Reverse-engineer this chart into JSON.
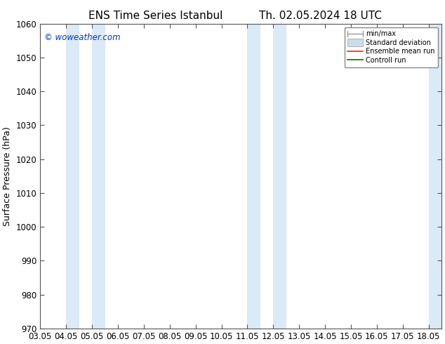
{
  "title_left": "ENS Time Series Istanbul",
  "title_right": "Th. 02.05.2024 18 UTC",
  "ylabel": "Surface Pressure (hPa)",
  "ylim": [
    970,
    1060
  ],
  "yticks": [
    970,
    980,
    990,
    1000,
    1010,
    1020,
    1030,
    1040,
    1050,
    1060
  ],
  "xlim": [
    0,
    15.5
  ],
  "xtick_labels": [
    "03.05",
    "04.05",
    "05.05",
    "06.05",
    "07.05",
    "08.05",
    "09.05",
    "10.05",
    "11.05",
    "12.05",
    "13.05",
    "14.05",
    "15.05",
    "16.05",
    "17.05",
    "18.05"
  ],
  "xtick_positions": [
    0,
    1,
    2,
    3,
    4,
    5,
    6,
    7,
    8,
    9,
    10,
    11,
    12,
    13,
    14,
    15
  ],
  "watermark": "© woweather.com",
  "watermark_color": "#0033cc",
  "bg_color": "#ffffff",
  "plot_bg_color": "#ffffff",
  "shaded_bands": [
    {
      "x_start": 1.0,
      "x_end": 1.5,
      "color": "#daeaf7"
    },
    {
      "x_start": 2.0,
      "x_end": 2.5,
      "color": "#daeaf7"
    },
    {
      "x_start": 8.0,
      "x_end": 8.5,
      "color": "#daeaf7"
    },
    {
      "x_start": 9.0,
      "x_end": 9.5,
      "color": "#daeaf7"
    },
    {
      "x_start": 15.0,
      "x_end": 15.5,
      "color": "#daeaf7"
    }
  ],
  "title_fontsize": 11,
  "axis_fontsize": 9,
  "tick_fontsize": 8.5
}
